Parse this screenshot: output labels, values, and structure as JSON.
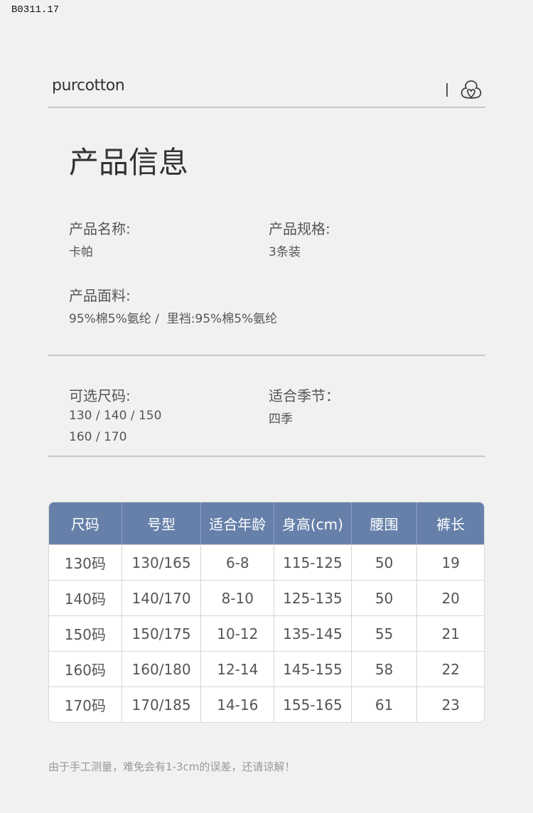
{
  "code": "B0311.17",
  "brand": "purcotton",
  "logo_icon": "cotton-heart-icon",
  "title": "产品信息",
  "info": {
    "name_label": "产品名称:",
    "name_value": "卡帕",
    "spec_label": "产品规格:",
    "spec_value": "3条装",
    "fabric_label": "产品面料:",
    "fabric_value": "95%棉5%氨纶 /  里裆:95%棉5%氨纶",
    "sizes_label": "可选尺码:",
    "sizes_line1": "130 / 140 / 150",
    "sizes_line2": "160 / 170",
    "season_label": "适合季节：",
    "season_value": "四季"
  },
  "table": {
    "header_color": "#6680aa",
    "headers": [
      "尺码",
      "号型",
      "适合年龄",
      "身高(cm)",
      "腰围",
      "裤长"
    ],
    "rows": [
      [
        "130码",
        "130/165",
        "6-8",
        "115-125",
        "50",
        "19"
      ],
      [
        "140码",
        "140/170",
        "8-10",
        "125-135",
        "50",
        "20"
      ],
      [
        "150码",
        "150/175",
        "10-12",
        "135-145",
        "55",
        "21"
      ],
      [
        "160码",
        "160/180",
        "12-14",
        "145-155",
        "58",
        "22"
      ],
      [
        "170码",
        "170/185",
        "14-16",
        "155-165",
        "61",
        "23"
      ]
    ]
  },
  "note": "由于手工测量，难免会有1-3cm的误差，还请谅解！"
}
